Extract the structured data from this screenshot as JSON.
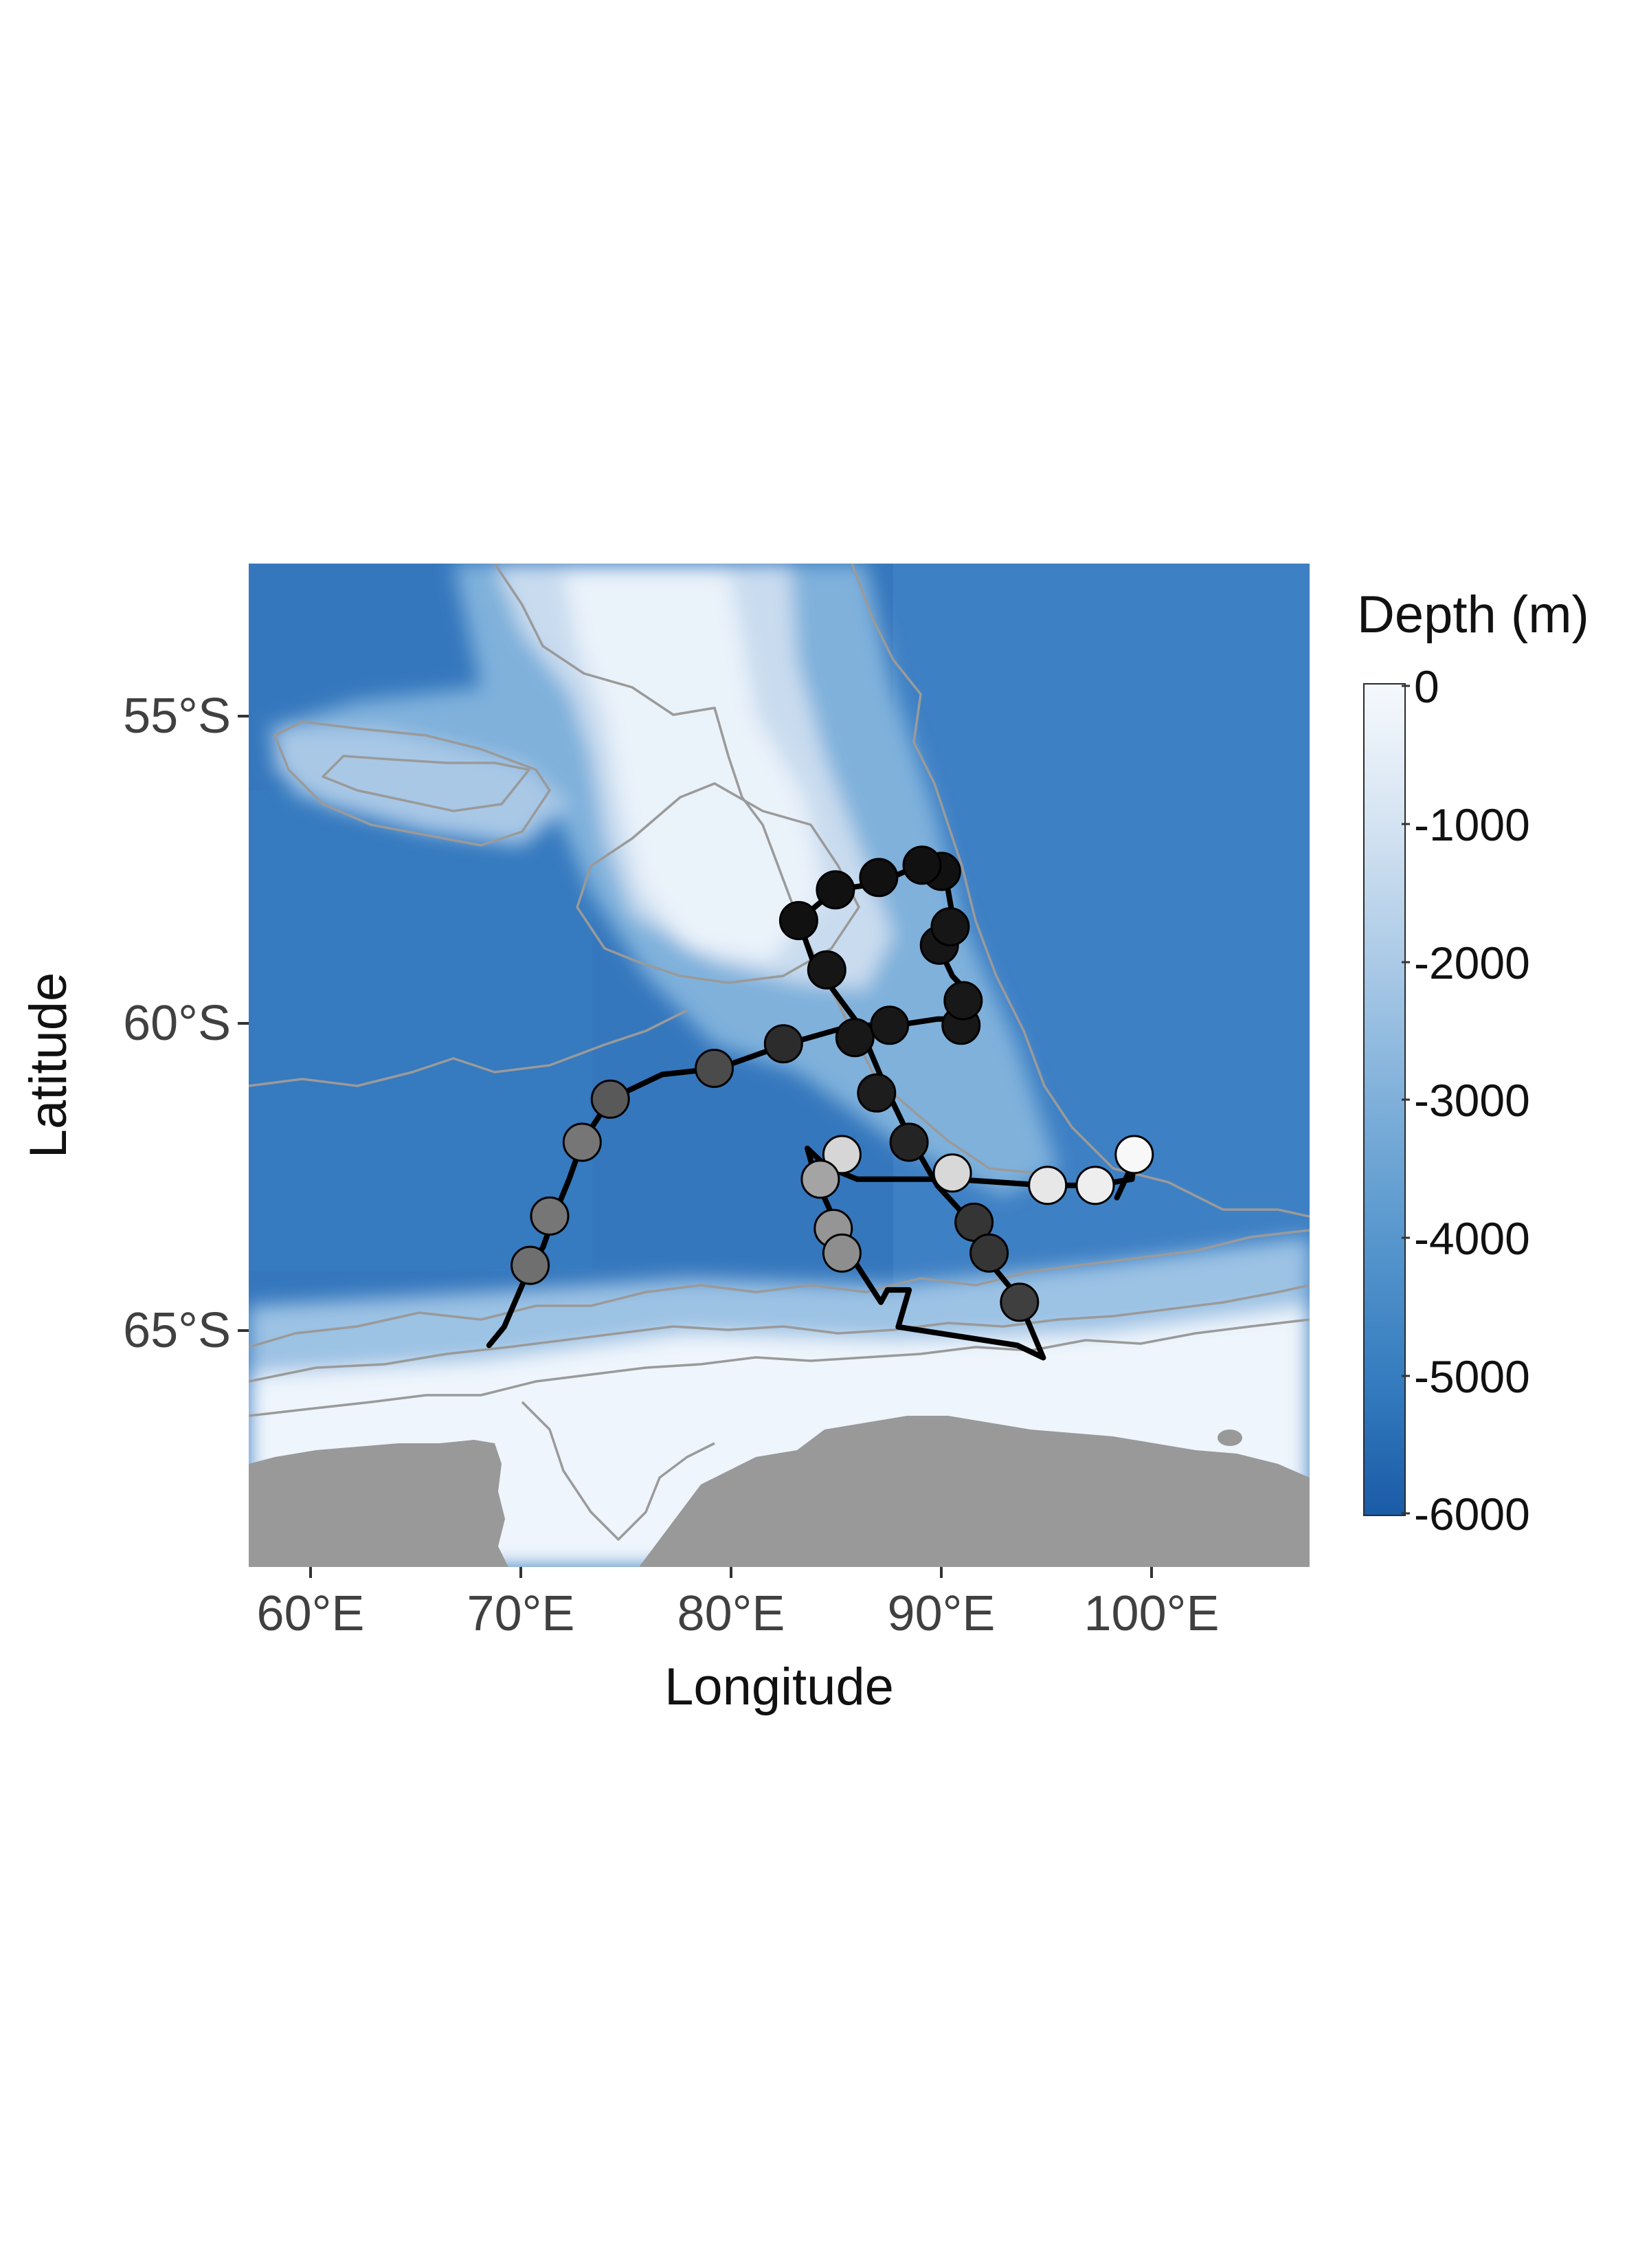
{
  "axes": {
    "xlabel": "Longitude",
    "ylabel": "Latitude",
    "xticks": [
      "60°E",
      "70°E",
      "80°E",
      "90°E",
      "100°E"
    ],
    "yticks": [
      "55°S",
      "60°S",
      "65°S"
    ]
  },
  "legend": {
    "title": "Depth (m)",
    "labels": [
      "0",
      "-1000",
      "-2000",
      "-3000",
      "-4000",
      "-5000",
      "-6000"
    ]
  },
  "colors": {
    "deep_ocean": "#2a6bb2",
    "mid_ocean": "#4c90cd",
    "shallow": "#dfeaf6",
    "land": "#999999",
    "contour": "#9a9a9a",
    "track": "#000000"
  },
  "chart_data": {
    "type": "map",
    "xlim": [
      57.5,
      106.5
    ],
    "ylim": [
      -68.8,
      -52.5
    ],
    "fill_scale": {
      "variable": "Depth (m)",
      "range": [
        -6000,
        0
      ]
    },
    "track": [
      [
        68.6,
        -65.2
      ],
      [
        69.3,
        -64.9
      ],
      [
        70.4,
        -64.0
      ],
      [
        71.1,
        -63.6
      ],
      [
        71.6,
        -63.1
      ],
      [
        72.3,
        -62.5
      ],
      [
        72.9,
        -61.9
      ],
      [
        74.2,
        -61.2
      ],
      [
        76.6,
        -60.8
      ],
      [
        79.2,
        -60.7
      ],
      [
        82.4,
        -60.3
      ],
      [
        85.4,
        -60.0
      ],
      [
        87.4,
        -60.0
      ],
      [
        89.3,
        -59.9
      ],
      [
        91.0,
        -59.9
      ],
      [
        91.1,
        -59.6
      ],
      [
        90.0,
        -59.2
      ],
      [
        89.6,
        -58.9
      ],
      [
        90.1,
        -58.4
      ],
      [
        89.7,
        -57.6
      ],
      [
        88.5,
        -57.4
      ],
      [
        86.5,
        -57.7
      ],
      [
        84.6,
        -57.8
      ],
      [
        82.9,
        -58.3
      ],
      [
        83.6,
        -59.0
      ],
      [
        85.7,
        -60.0
      ],
      [
        86.9,
        -61.0
      ],
      [
        88.0,
        -61.8
      ],
      [
        89.3,
        -62.6
      ],
      [
        90.6,
        -63.1
      ],
      [
        91.6,
        -63.8
      ],
      [
        93.0,
        -64.4
      ],
      [
        94.2,
        -65.4
      ],
      [
        93.0,
        -65.2
      ],
      [
        87.5,
        -64.9
      ],
      [
        88.0,
        -64.3
      ],
      [
        87.0,
        -64.3
      ],
      [
        86.7,
        -64.5
      ],
      [
        85.6,
        -63.9
      ],
      [
        84.6,
        -63.2
      ],
      [
        83.7,
        -62.5
      ],
      [
        83.3,
        -62.0
      ],
      [
        84.2,
        -62.3
      ],
      [
        85.6,
        -62.5
      ],
      [
        90.0,
        -62.5
      ],
      [
        94.3,
        -62.6
      ],
      [
        96.6,
        -62.6
      ],
      [
        98.3,
        -62.5
      ],
      [
        98.4,
        -62.2
      ],
      [
        97.6,
        -62.8
      ]
    ],
    "positions": [
      {
        "lon": 70.5,
        "lat": -63.9,
        "value": 0.42
      },
      {
        "lon": 71.4,
        "lat": -63.1,
        "value": 0.45
      },
      {
        "lon": 72.9,
        "lat": -61.9,
        "value": 0.45
      },
      {
        "lon": 74.2,
        "lat": -61.2,
        "value": 0.33
      },
      {
        "lon": 79.0,
        "lat": -60.7,
        "value": 0.27
      },
      {
        "lon": 82.2,
        "lat": -60.3,
        "value": 0.14
      },
      {
        "lon": 85.5,
        "lat": -60.2,
        "value": 0.06
      },
      {
        "lon": 87.1,
        "lat": -60.0,
        "value": 0.06
      },
      {
        "lon": 90.4,
        "lat": -60.0,
        "value": 0.06
      },
      {
        "lon": 90.5,
        "lat": -59.6,
        "value": 0.06
      },
      {
        "lon": 89.4,
        "lat": -58.7,
        "value": 0.05
      },
      {
        "lon": 89.9,
        "lat": -58.4,
        "value": 0.05
      },
      {
        "lon": 89.5,
        "lat": -57.5,
        "value": 0.03
      },
      {
        "lon": 88.6,
        "lat": -57.4,
        "value": 0.03
      },
      {
        "lon": 86.6,
        "lat": -57.6,
        "value": 0.03
      },
      {
        "lon": 84.6,
        "lat": -57.8,
        "value": 0.03
      },
      {
        "lon": 82.9,
        "lat": -58.3,
        "value": 0.03
      },
      {
        "lon": 84.2,
        "lat": -59.1,
        "value": 0.05
      },
      {
        "lon": 86.5,
        "lat": -61.1,
        "value": 0.08
      },
      {
        "lon": 88.0,
        "lat": -61.9,
        "value": 0.11
      },
      {
        "lon": 91.0,
        "lat": -63.2,
        "value": 0.18
      },
      {
        "lon": 91.7,
        "lat": -63.7,
        "value": 0.18
      },
      {
        "lon": 93.1,
        "lat": -64.5,
        "value": 0.22
      },
      {
        "lon": 84.9,
        "lat": -62.1,
        "value": 0.85
      },
      {
        "lon": 83.9,
        "lat": -62.5,
        "value": 0.64
      },
      {
        "lon": 84.5,
        "lat": -63.3,
        "value": 0.58
      },
      {
        "lon": 84.9,
        "lat": -63.7,
        "value": 0.55
      },
      {
        "lon": 90.0,
        "lat": -62.4,
        "value": 0.86
      },
      {
        "lon": 94.4,
        "lat": -62.6,
        "value": 0.92
      },
      {
        "lon": 96.6,
        "lat": -62.6,
        "value": 0.95
      },
      {
        "lon": 98.4,
        "lat": -62.1,
        "value": 0.99
      }
    ]
  }
}
